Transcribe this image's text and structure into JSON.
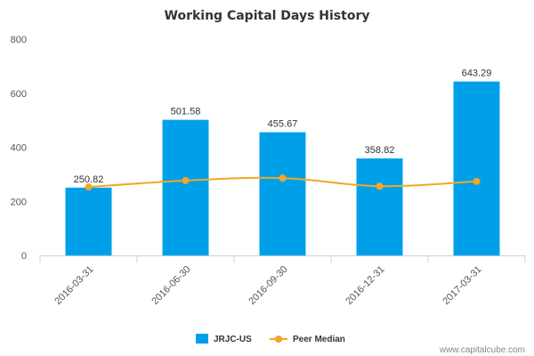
{
  "chart_data": {
    "type": "bar",
    "title": "Working Capital Days History",
    "categories": [
      "2016-03-31",
      "2016-06-30",
      "2016-09-30",
      "2016-12-31",
      "2017-03-31"
    ],
    "series": [
      {
        "name": "JRJC-US",
        "type": "bar",
        "color": "#00a0e9",
        "values": [
          250.82,
          501.58,
          455.67,
          358.82,
          643.29
        ],
        "labels": [
          "250.82",
          "501.58",
          "455.67",
          "358.82",
          "643.29"
        ]
      },
      {
        "name": "Peer Median",
        "type": "line",
        "color": "#f5a623",
        "values": [
          253,
          277,
          286,
          256,
          274
        ]
      }
    ],
    "yticks": [
      "0",
      "200",
      "400",
      "600",
      "800"
    ],
    "ylim": [
      0,
      800
    ],
    "grid": false,
    "legend_position": "bottom-center"
  },
  "credit": "www.capitalcube.com"
}
